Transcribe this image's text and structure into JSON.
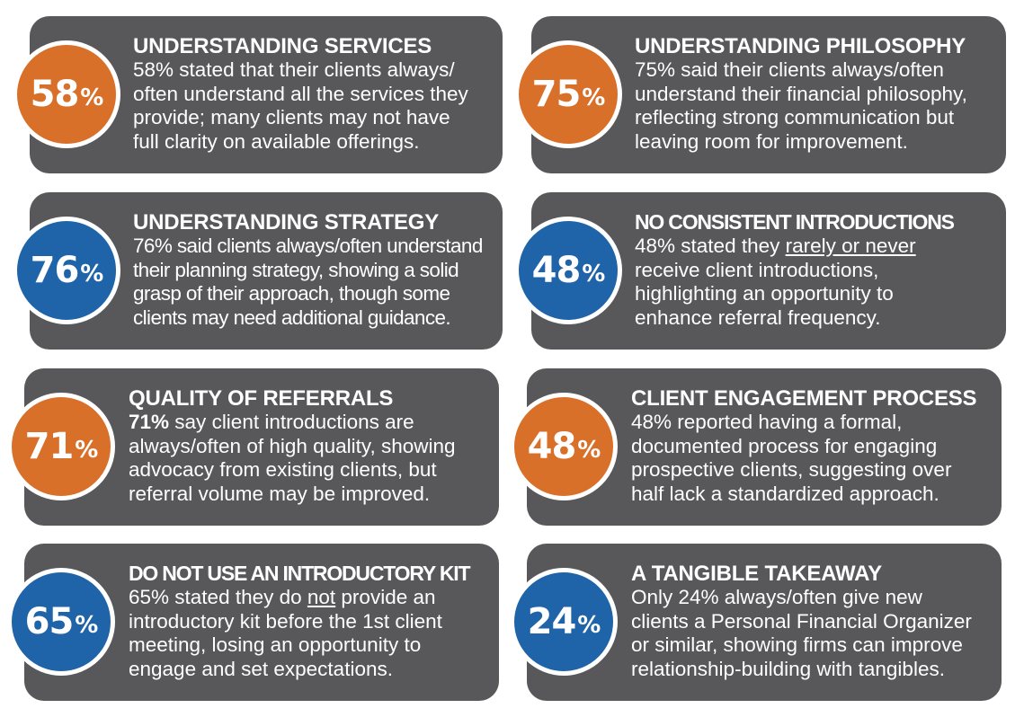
{
  "colors": {
    "card": "#58585a",
    "orange": "#d9702a",
    "blue": "#1f64a8"
  },
  "cards": [
    {
      "value": "58",
      "pct": "%",
      "color": "#d9702a",
      "title": "UNDERSTANDING SERVICES",
      "lines": [
        "58% stated that their clients always/",
        "often understand all the services they",
        "provide; many clients may not have",
        "full clarity on available offerings."
      ]
    },
    {
      "value": "75",
      "pct": "%",
      "color": "#d9702a",
      "title": "UNDERSTANDING PHILOSOPHY",
      "lines": [
        "75% said their clients always/often",
        "understand their financial philosophy,",
        "reflecting strong communication but",
        "leaving room for improvement."
      ]
    },
    {
      "value": "76",
      "pct": "%",
      "color": "#1f64a8",
      "title": "UNDERSTANDING STRATEGY",
      "lines": [
        "76% said clients always/often understand",
        "their planning strategy, showing a solid",
        "grasp of their approach, though some",
        "clients may need additional guidance."
      ]
    },
    {
      "value": "48",
      "pct": "%",
      "color": "#1f64a8",
      "title": "NO CONSISTENT INTRODUCTIONS",
      "line1_pre": "48% stated they ",
      "line1_u": "rarely or never",
      "lines": [
        "receive client introductions,",
        "highlighting an opportunity to",
        "enhance referral frequency."
      ]
    },
    {
      "value": "71",
      "pct": "%",
      "color": "#d9702a",
      "title": "QUALITY OF REFERRALS",
      "line1_b": "71%",
      "line1_post": " say client introductions are",
      "lines": [
        "always/often of high quality, showing",
        "advocacy from existing clients, but",
        "referral volume may be improved."
      ]
    },
    {
      "value": "48",
      "pct": "%",
      "color": "#d9702a",
      "title": "CLIENT ENGAGEMENT PROCESS",
      "lines": [
        "48% reported having a formal,",
        "documented process for engaging",
        "prospective clients, suggesting over",
        "half lack a standardized approach."
      ]
    },
    {
      "value": "65",
      "pct": "%",
      "color": "#1f64a8",
      "title": "DO NOT USE AN INTRODUCTORY KIT",
      "line1_pre": "65% stated they do ",
      "line1_u": "not",
      "line1_post": " provide an",
      "lines": [
        "introductory kit before the 1st client",
        "meeting, losing an opportunity to",
        "engage and set expectations."
      ]
    },
    {
      "value": "24",
      "pct": "%",
      "color": "#1f64a8",
      "title": "A TANGIBLE TAKEAWAY",
      "lines": [
        "Only 24% always/often give new",
        "clients a Personal Financial Organizer",
        "or similar, showing firms can improve",
        "relationship-building with tangibles."
      ]
    }
  ]
}
